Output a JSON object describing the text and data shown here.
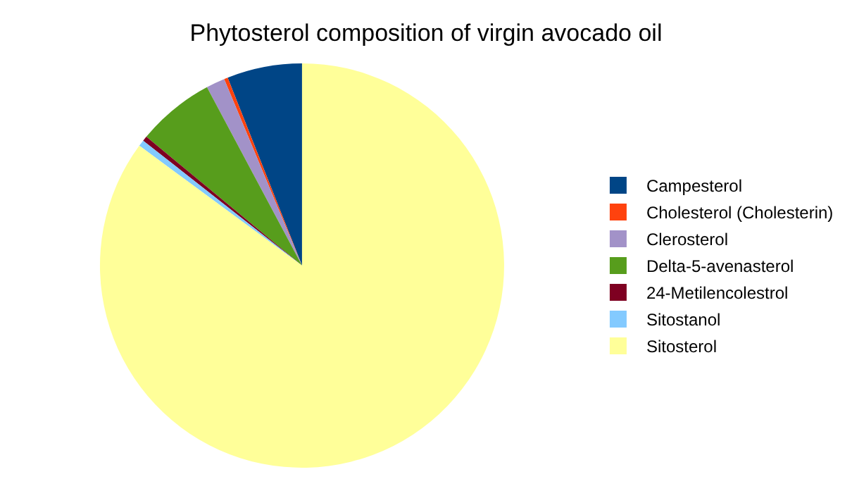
{
  "chart_data": {
    "type": "pie",
    "title": "Phytosterol composition of virgin avocado oil",
    "categories": [
      "Campesterol",
      "Cholesterol (Cholesterin)",
      "Clerosterol",
      "Delta-5-avenasterol",
      "24-Metilencolestrol",
      "Sitostanol",
      "Sitosterol"
    ],
    "values": [
      6.0,
      0.3,
      1.5,
      6.2,
      0.4,
      0.5,
      85.1
    ],
    "colors": [
      "#004586",
      "#ff420e",
      "#a292c8",
      "#579d1c",
      "#7e0021",
      "#83caff",
      "#ffff99"
    ],
    "legend": "right"
  }
}
